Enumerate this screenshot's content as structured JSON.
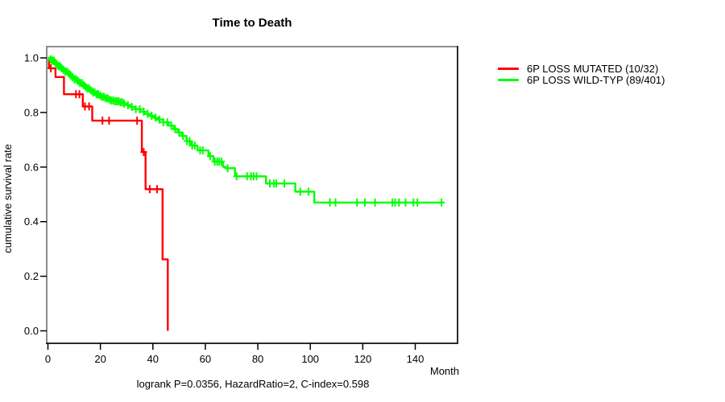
{
  "chart_data": {
    "type": "line",
    "subtype": "kaplan-meier-step",
    "title": "Time to Death",
    "xlabel": "Month",
    "ylabel": "cumulative survival rate",
    "annotation": "logrank P=0.0356, HazardRatio=2, C-index=0.598",
    "xlim": [
      0,
      156
    ],
    "ylim": [
      0,
      1.0
    ],
    "x_ticks": [
      0,
      20,
      40,
      60,
      80,
      100,
      120,
      140
    ],
    "y_tick_labels": [
      "0.0",
      "0.2",
      "0.4",
      "0.6",
      "0.8",
      "1.0"
    ],
    "y_tick_values": [
      0.0,
      0.2,
      0.4,
      0.6,
      0.8,
      1.0
    ],
    "grid": "off",
    "legend_position": "outside-top-right",
    "series": [
      {
        "name": "6P LOSS MUTATED (10/32)",
        "color": "#ff0000",
        "events_total": "10/32",
        "end_month": 45.7,
        "steps": [
          [
            0,
            1.0
          ],
          [
            0.4,
            0.962
          ],
          [
            2.9,
            0.93
          ],
          [
            6.1,
            0.867
          ],
          [
            13.3,
            0.822
          ],
          [
            16.9,
            0.77
          ],
          [
            35.8,
            0.655
          ],
          [
            37.2,
            0.519
          ],
          [
            43.7,
            0.262
          ],
          [
            45.7,
            0.0
          ]
        ],
        "censor_months": [
          1.1,
          10.7,
          12.0,
          14.1,
          15.7,
          20.8,
          23.3,
          34.0,
          36.5,
          38.8,
          41.6
        ]
      },
      {
        "name": "6P LOSS WILD-TYP (89/401)",
        "color": "#00ff00",
        "events_total": "89/401",
        "end_month": 151.2,
        "steps": [
          [
            0,
            1.0
          ],
          [
            0.7,
            0.995
          ],
          [
            1.5,
            0.99
          ],
          [
            2.3,
            0.983
          ],
          [
            3.1,
            0.976
          ],
          [
            3.9,
            0.97
          ],
          [
            4.8,
            0.963
          ],
          [
            5.6,
            0.956
          ],
          [
            6.5,
            0.95
          ],
          [
            7.4,
            0.943
          ],
          [
            8.3,
            0.936
          ],
          [
            9.2,
            0.929
          ],
          [
            10.1,
            0.922
          ],
          [
            11.0,
            0.915
          ],
          [
            12.0,
            0.908
          ],
          [
            13.0,
            0.901
          ],
          [
            14.0,
            0.894
          ],
          [
            15.0,
            0.888
          ],
          [
            16.0,
            0.881
          ],
          [
            17.1,
            0.874
          ],
          [
            18.2,
            0.867
          ],
          [
            19.3,
            0.862
          ],
          [
            20.4,
            0.857
          ],
          [
            21.6,
            0.852
          ],
          [
            22.8,
            0.848
          ],
          [
            24.0,
            0.844
          ],
          [
            25.5,
            0.841
          ],
          [
            27.0,
            0.837
          ],
          [
            28.5,
            0.833
          ],
          [
            30.0,
            0.827
          ],
          [
            31.7,
            0.82
          ],
          [
            33.4,
            0.812
          ],
          [
            35.1,
            0.803
          ],
          [
            36.8,
            0.795
          ],
          [
            38.5,
            0.788
          ],
          [
            40.2,
            0.781
          ],
          [
            42.0,
            0.774
          ],
          [
            44.0,
            0.764
          ],
          [
            46.0,
            0.752
          ],
          [
            48.0,
            0.739
          ],
          [
            49.5,
            0.727
          ],
          [
            51.0,
            0.714
          ],
          [
            52.8,
            0.695
          ],
          [
            54.5,
            0.679
          ],
          [
            57.0,
            0.661
          ],
          [
            61.2,
            0.64
          ],
          [
            63.1,
            0.62
          ],
          [
            66.7,
            0.601
          ],
          [
            67.7,
            0.596
          ],
          [
            71.3,
            0.566
          ],
          [
            83.1,
            0.54
          ],
          [
            94.3,
            0.51
          ],
          [
            101.5,
            0.47
          ]
        ],
        "censor_months": [
          1.0,
          1.6,
          2.2,
          2.8,
          3.4,
          4.0,
          4.6,
          5.2,
          5.9,
          6.6,
          7.3,
          8.0,
          8.7,
          9.4,
          10.1,
          10.8,
          11.5,
          12.2,
          12.9,
          13.6,
          14.3,
          15.0,
          15.7,
          16.4,
          17.1,
          17.8,
          18.5,
          19.2,
          19.9,
          20.6,
          21.3,
          22.0,
          22.7,
          23.4,
          24.1,
          24.8,
          25.5,
          26.2,
          26.9,
          27.6,
          28.3,
          29.0,
          30.5,
          32.0,
          33.5,
          35.0,
          36.5,
          38.0,
          39.5,
          41.0,
          42.5,
          44.0,
          45.5,
          47.0,
          48.5,
          50.0,
          51.5,
          53.0,
          54.0,
          55.0,
          56.0,
          58.0,
          59.0,
          61.8,
          63.6,
          64.5,
          65.3,
          66.2,
          68.5,
          71.9,
          75.9,
          77.4,
          78.4,
          79.5,
          84.6,
          86.1,
          87.0,
          90.1,
          96.2,
          99.3,
          107.5,
          109.6,
          117.8,
          120.8,
          124.7,
          131.3,
          132.3,
          133.8,
          136.3,
          139.3,
          140.8,
          150.0
        ]
      }
    ]
  }
}
